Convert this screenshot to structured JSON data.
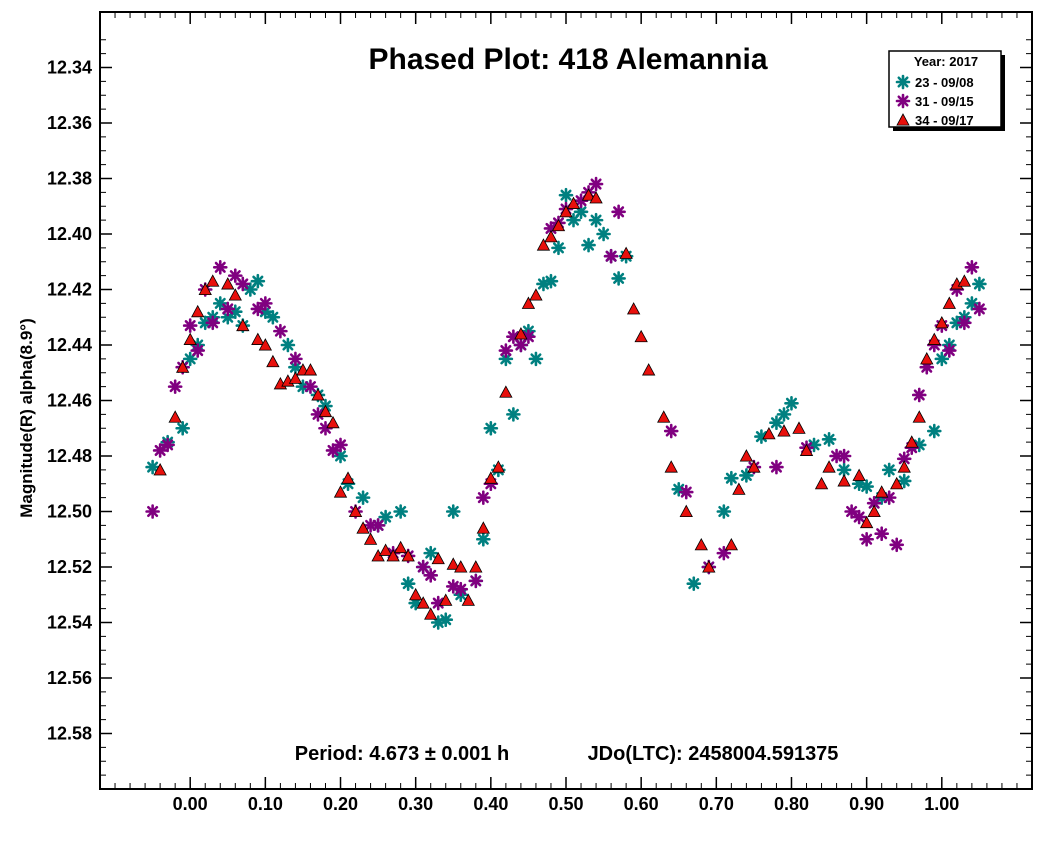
{
  "chart_data": {
    "type": "scatter",
    "title": "Phased Plot: 418 Alemannia",
    "ylabel": "Magnitude(R) alpha(8.9°)",
    "xlabel": "",
    "xlim": [
      -0.12,
      1.12
    ],
    "ylim": [
      12.6,
      12.32
    ],
    "y_inverted": true,
    "grid": false,
    "legend_position": "top-right",
    "legend_title": "Year: 2017",
    "x_ticks": [
      "0.00",
      "0.10",
      "0.20",
      "0.30",
      "0.40",
      "0.50",
      "0.60",
      "0.70",
      "0.80",
      "0.90",
      "1.00"
    ],
    "x_tick_values": [
      0,
      0.1,
      0.2,
      0.3,
      0.4,
      0.5,
      0.6,
      0.7,
      0.8,
      0.9,
      1.0
    ],
    "y_ticks": [
      "12.34",
      "12.36",
      "12.38",
      "12.40",
      "12.42",
      "12.44",
      "12.46",
      "12.48",
      "12.50",
      "12.52",
      "12.54",
      "12.56",
      "12.58"
    ],
    "y_tick_values": [
      12.34,
      12.36,
      12.38,
      12.4,
      12.42,
      12.44,
      12.46,
      12.48,
      12.5,
      12.52,
      12.54,
      12.56,
      12.58
    ],
    "annotations": {
      "period": "Period: 4.673 ± 0.001 h",
      "epoch": "JDo(LTC): 2458004.591375"
    },
    "series": [
      {
        "name": "23 - 09/08",
        "color": "#008080",
        "marker": "asterisk",
        "points": [
          [
            -0.05,
            12.484
          ],
          [
            -0.03,
            12.475
          ],
          [
            -0.01,
            12.47
          ],
          [
            0.0,
            12.445
          ],
          [
            0.01,
            12.44
          ],
          [
            0.02,
            12.432
          ],
          [
            0.03,
            12.43
          ],
          [
            0.04,
            12.425
          ],
          [
            0.05,
            12.43
          ],
          [
            0.06,
            12.428
          ],
          [
            0.07,
            12.433
          ],
          [
            0.08,
            12.42
          ],
          [
            0.09,
            12.417
          ],
          [
            0.1,
            12.428
          ],
          [
            0.11,
            12.43
          ],
          [
            0.13,
            12.44
          ],
          [
            0.14,
            12.448
          ],
          [
            0.15,
            12.455
          ],
          [
            0.17,
            12.458
          ],
          [
            0.18,
            12.462
          ],
          [
            0.2,
            12.48
          ],
          [
            0.21,
            12.49
          ],
          [
            0.23,
            12.495
          ],
          [
            0.25,
            12.505
          ],
          [
            0.26,
            12.502
          ],
          [
            0.28,
            12.5
          ],
          [
            0.29,
            12.526
          ],
          [
            0.3,
            12.533
          ],
          [
            0.31,
            12.52
          ],
          [
            0.32,
            12.515
          ],
          [
            0.33,
            12.54
          ],
          [
            0.34,
            12.539
          ],
          [
            0.35,
            12.5
          ],
          [
            0.36,
            12.53
          ],
          [
            0.38,
            12.525
          ],
          [
            0.39,
            12.51
          ],
          [
            0.4,
            12.47
          ],
          [
            0.41,
            12.485
          ],
          [
            0.42,
            12.445
          ],
          [
            0.43,
            12.465
          ],
          [
            0.44,
            12.44
          ],
          [
            0.45,
            12.435
          ],
          [
            0.46,
            12.445
          ],
          [
            0.47,
            12.418
          ],
          [
            0.48,
            12.417
          ],
          [
            0.49,
            12.405
          ],
          [
            0.5,
            12.386
          ],
          [
            0.51,
            12.395
          ],
          [
            0.52,
            12.392
          ],
          [
            0.53,
            12.404
          ],
          [
            0.54,
            12.395
          ],
          [
            0.55,
            12.4
          ],
          [
            0.56,
            12.408
          ],
          [
            0.57,
            12.416
          ],
          [
            0.58,
            12.408
          ],
          [
            0.65,
            12.492
          ],
          [
            0.67,
            12.526
          ],
          [
            0.69,
            12.52
          ],
          [
            0.71,
            12.5
          ],
          [
            0.72,
            12.488
          ],
          [
            0.74,
            12.487
          ],
          [
            0.76,
            12.473
          ],
          [
            0.78,
            12.468
          ],
          [
            0.79,
            12.465
          ],
          [
            0.8,
            12.461
          ],
          [
            0.83,
            12.476
          ],
          [
            0.85,
            12.474
          ],
          [
            0.87,
            12.485
          ],
          [
            0.89,
            12.49
          ],
          [
            0.9,
            12.491
          ],
          [
            0.92,
            12.495
          ],
          [
            0.93,
            12.485
          ],
          [
            0.95,
            12.489
          ],
          [
            0.97,
            12.476
          ],
          [
            0.99,
            12.471
          ],
          [
            1.0,
            12.445
          ],
          [
            1.01,
            12.44
          ],
          [
            1.02,
            12.432
          ],
          [
            1.03,
            12.43
          ],
          [
            1.04,
            12.425
          ],
          [
            1.05,
            12.418
          ]
        ]
      },
      {
        "name": "31 - 09/15",
        "color": "#800080",
        "marker": "asterisk",
        "points": [
          [
            -0.05,
            12.5
          ],
          [
            -0.04,
            12.478
          ],
          [
            -0.03,
            12.476
          ],
          [
            -0.02,
            12.455
          ],
          [
            -0.01,
            12.448
          ],
          [
            0.0,
            12.433
          ],
          [
            0.01,
            12.442
          ],
          [
            0.02,
            12.42
          ],
          [
            0.03,
            12.432
          ],
          [
            0.04,
            12.412
          ],
          [
            0.05,
            12.427
          ],
          [
            0.06,
            12.415
          ],
          [
            0.07,
            12.418
          ],
          [
            0.09,
            12.427
          ],
          [
            0.1,
            12.425
          ],
          [
            0.12,
            12.435
          ],
          [
            0.14,
            12.445
          ],
          [
            0.16,
            12.455
          ],
          [
            0.17,
            12.465
          ],
          [
            0.18,
            12.47
          ],
          [
            0.19,
            12.478
          ],
          [
            0.2,
            12.476
          ],
          [
            0.22,
            12.5
          ],
          [
            0.24,
            12.505
          ],
          [
            0.25,
            12.505
          ],
          [
            0.27,
            12.515
          ],
          [
            0.29,
            12.516
          ],
          [
            0.31,
            12.52
          ],
          [
            0.32,
            12.523
          ],
          [
            0.33,
            12.533
          ],
          [
            0.35,
            12.527
          ],
          [
            0.36,
            12.528
          ],
          [
            0.38,
            12.525
          ],
          [
            0.39,
            12.495
          ],
          [
            0.4,
            12.49
          ],
          [
            0.42,
            12.442
          ],
          [
            0.43,
            12.437
          ],
          [
            0.44,
            12.44
          ],
          [
            0.45,
            12.437
          ],
          [
            0.48,
            12.398
          ],
          [
            0.49,
            12.396
          ],
          [
            0.5,
            12.391
          ],
          [
            0.52,
            12.388
          ],
          [
            0.53,
            12.385
          ],
          [
            0.54,
            12.382
          ],
          [
            0.56,
            12.408
          ],
          [
            0.57,
            12.392
          ],
          [
            0.64,
            12.471
          ],
          [
            0.66,
            12.493
          ],
          [
            0.69,
            12.52
          ],
          [
            0.71,
            12.515
          ],
          [
            0.75,
            12.484
          ],
          [
            0.78,
            12.484
          ],
          [
            0.82,
            12.477
          ],
          [
            0.86,
            12.48
          ],
          [
            0.87,
            12.48
          ],
          [
            0.88,
            12.5
          ],
          [
            0.89,
            12.502
          ],
          [
            0.9,
            12.51
          ],
          [
            0.91,
            12.497
          ],
          [
            0.92,
            12.508
          ],
          [
            0.93,
            12.495
          ],
          [
            0.94,
            12.512
          ],
          [
            0.95,
            12.481
          ],
          [
            0.96,
            12.477
          ],
          [
            0.97,
            12.458
          ],
          [
            0.98,
            12.448
          ],
          [
            0.99,
            12.44
          ],
          [
            1.0,
            12.433
          ],
          [
            1.01,
            12.442
          ],
          [
            1.02,
            12.42
          ],
          [
            1.03,
            12.432
          ],
          [
            1.04,
            12.412
          ],
          [
            1.05,
            12.427
          ]
        ]
      },
      {
        "name": "34 - 09/17",
        "color": "#e8100c",
        "marker": "triangle",
        "points": [
          [
            -0.04,
            12.485
          ],
          [
            -0.02,
            12.466
          ],
          [
            -0.01,
            12.448
          ],
          [
            0.0,
            12.438
          ],
          [
            0.01,
            12.428
          ],
          [
            0.02,
            12.42
          ],
          [
            0.03,
            12.417
          ],
          [
            0.05,
            12.418
          ],
          [
            0.06,
            12.422
          ],
          [
            0.07,
            12.433
          ],
          [
            0.09,
            12.438
          ],
          [
            0.1,
            12.44
          ],
          [
            0.11,
            12.446
          ],
          [
            0.12,
            12.454
          ],
          [
            0.13,
            12.453
          ],
          [
            0.14,
            12.452
          ],
          [
            0.15,
            12.449
          ],
          [
            0.16,
            12.449
          ],
          [
            0.17,
            12.458
          ],
          [
            0.18,
            12.464
          ],
          [
            0.19,
            12.468
          ],
          [
            0.2,
            12.493
          ],
          [
            0.21,
            12.488
          ],
          [
            0.22,
            12.5
          ],
          [
            0.23,
            12.506
          ],
          [
            0.24,
            12.51
          ],
          [
            0.25,
            12.516
          ],
          [
            0.26,
            12.514
          ],
          [
            0.27,
            12.516
          ],
          [
            0.28,
            12.513
          ],
          [
            0.29,
            12.516
          ],
          [
            0.3,
            12.53
          ],
          [
            0.31,
            12.533
          ],
          [
            0.32,
            12.537
          ],
          [
            0.33,
            12.517
          ],
          [
            0.34,
            12.532
          ],
          [
            0.35,
            12.519
          ],
          [
            0.36,
            12.52
          ],
          [
            0.37,
            12.532
          ],
          [
            0.38,
            12.52
          ],
          [
            0.39,
            12.506
          ],
          [
            0.4,
            12.488
          ],
          [
            0.41,
            12.484
          ],
          [
            0.42,
            12.457
          ],
          [
            0.44,
            12.436
          ],
          [
            0.45,
            12.425
          ],
          [
            0.46,
            12.422
          ],
          [
            0.47,
            12.404
          ],
          [
            0.48,
            12.401
          ],
          [
            0.49,
            12.397
          ],
          [
            0.5,
            12.392
          ],
          [
            0.51,
            12.389
          ],
          [
            0.53,
            12.386
          ],
          [
            0.54,
            12.387
          ],
          [
            0.58,
            12.407
          ],
          [
            0.59,
            12.427
          ],
          [
            0.6,
            12.437
          ],
          [
            0.61,
            12.449
          ],
          [
            0.63,
            12.466
          ],
          [
            0.64,
            12.484
          ],
          [
            0.66,
            12.5
          ],
          [
            0.68,
            12.512
          ],
          [
            0.69,
            12.52
          ],
          [
            0.72,
            12.512
          ],
          [
            0.73,
            12.492
          ],
          [
            0.74,
            12.48
          ],
          [
            0.75,
            12.484
          ],
          [
            0.77,
            12.472
          ],
          [
            0.79,
            12.471
          ],
          [
            0.81,
            12.47
          ],
          [
            0.82,
            12.478
          ],
          [
            0.84,
            12.49
          ],
          [
            0.85,
            12.484
          ],
          [
            0.87,
            12.489
          ],
          [
            0.89,
            12.487
          ],
          [
            0.9,
            12.504
          ],
          [
            0.91,
            12.5
          ],
          [
            0.92,
            12.493
          ],
          [
            0.94,
            12.49
          ],
          [
            0.95,
            12.484
          ],
          [
            0.96,
            12.475
          ],
          [
            0.97,
            12.466
          ],
          [
            0.98,
            12.445
          ],
          [
            0.99,
            12.438
          ],
          [
            1.0,
            12.432
          ],
          [
            1.01,
            12.425
          ],
          [
            1.02,
            12.418
          ],
          [
            1.03,
            12.417
          ]
        ]
      }
    ]
  }
}
